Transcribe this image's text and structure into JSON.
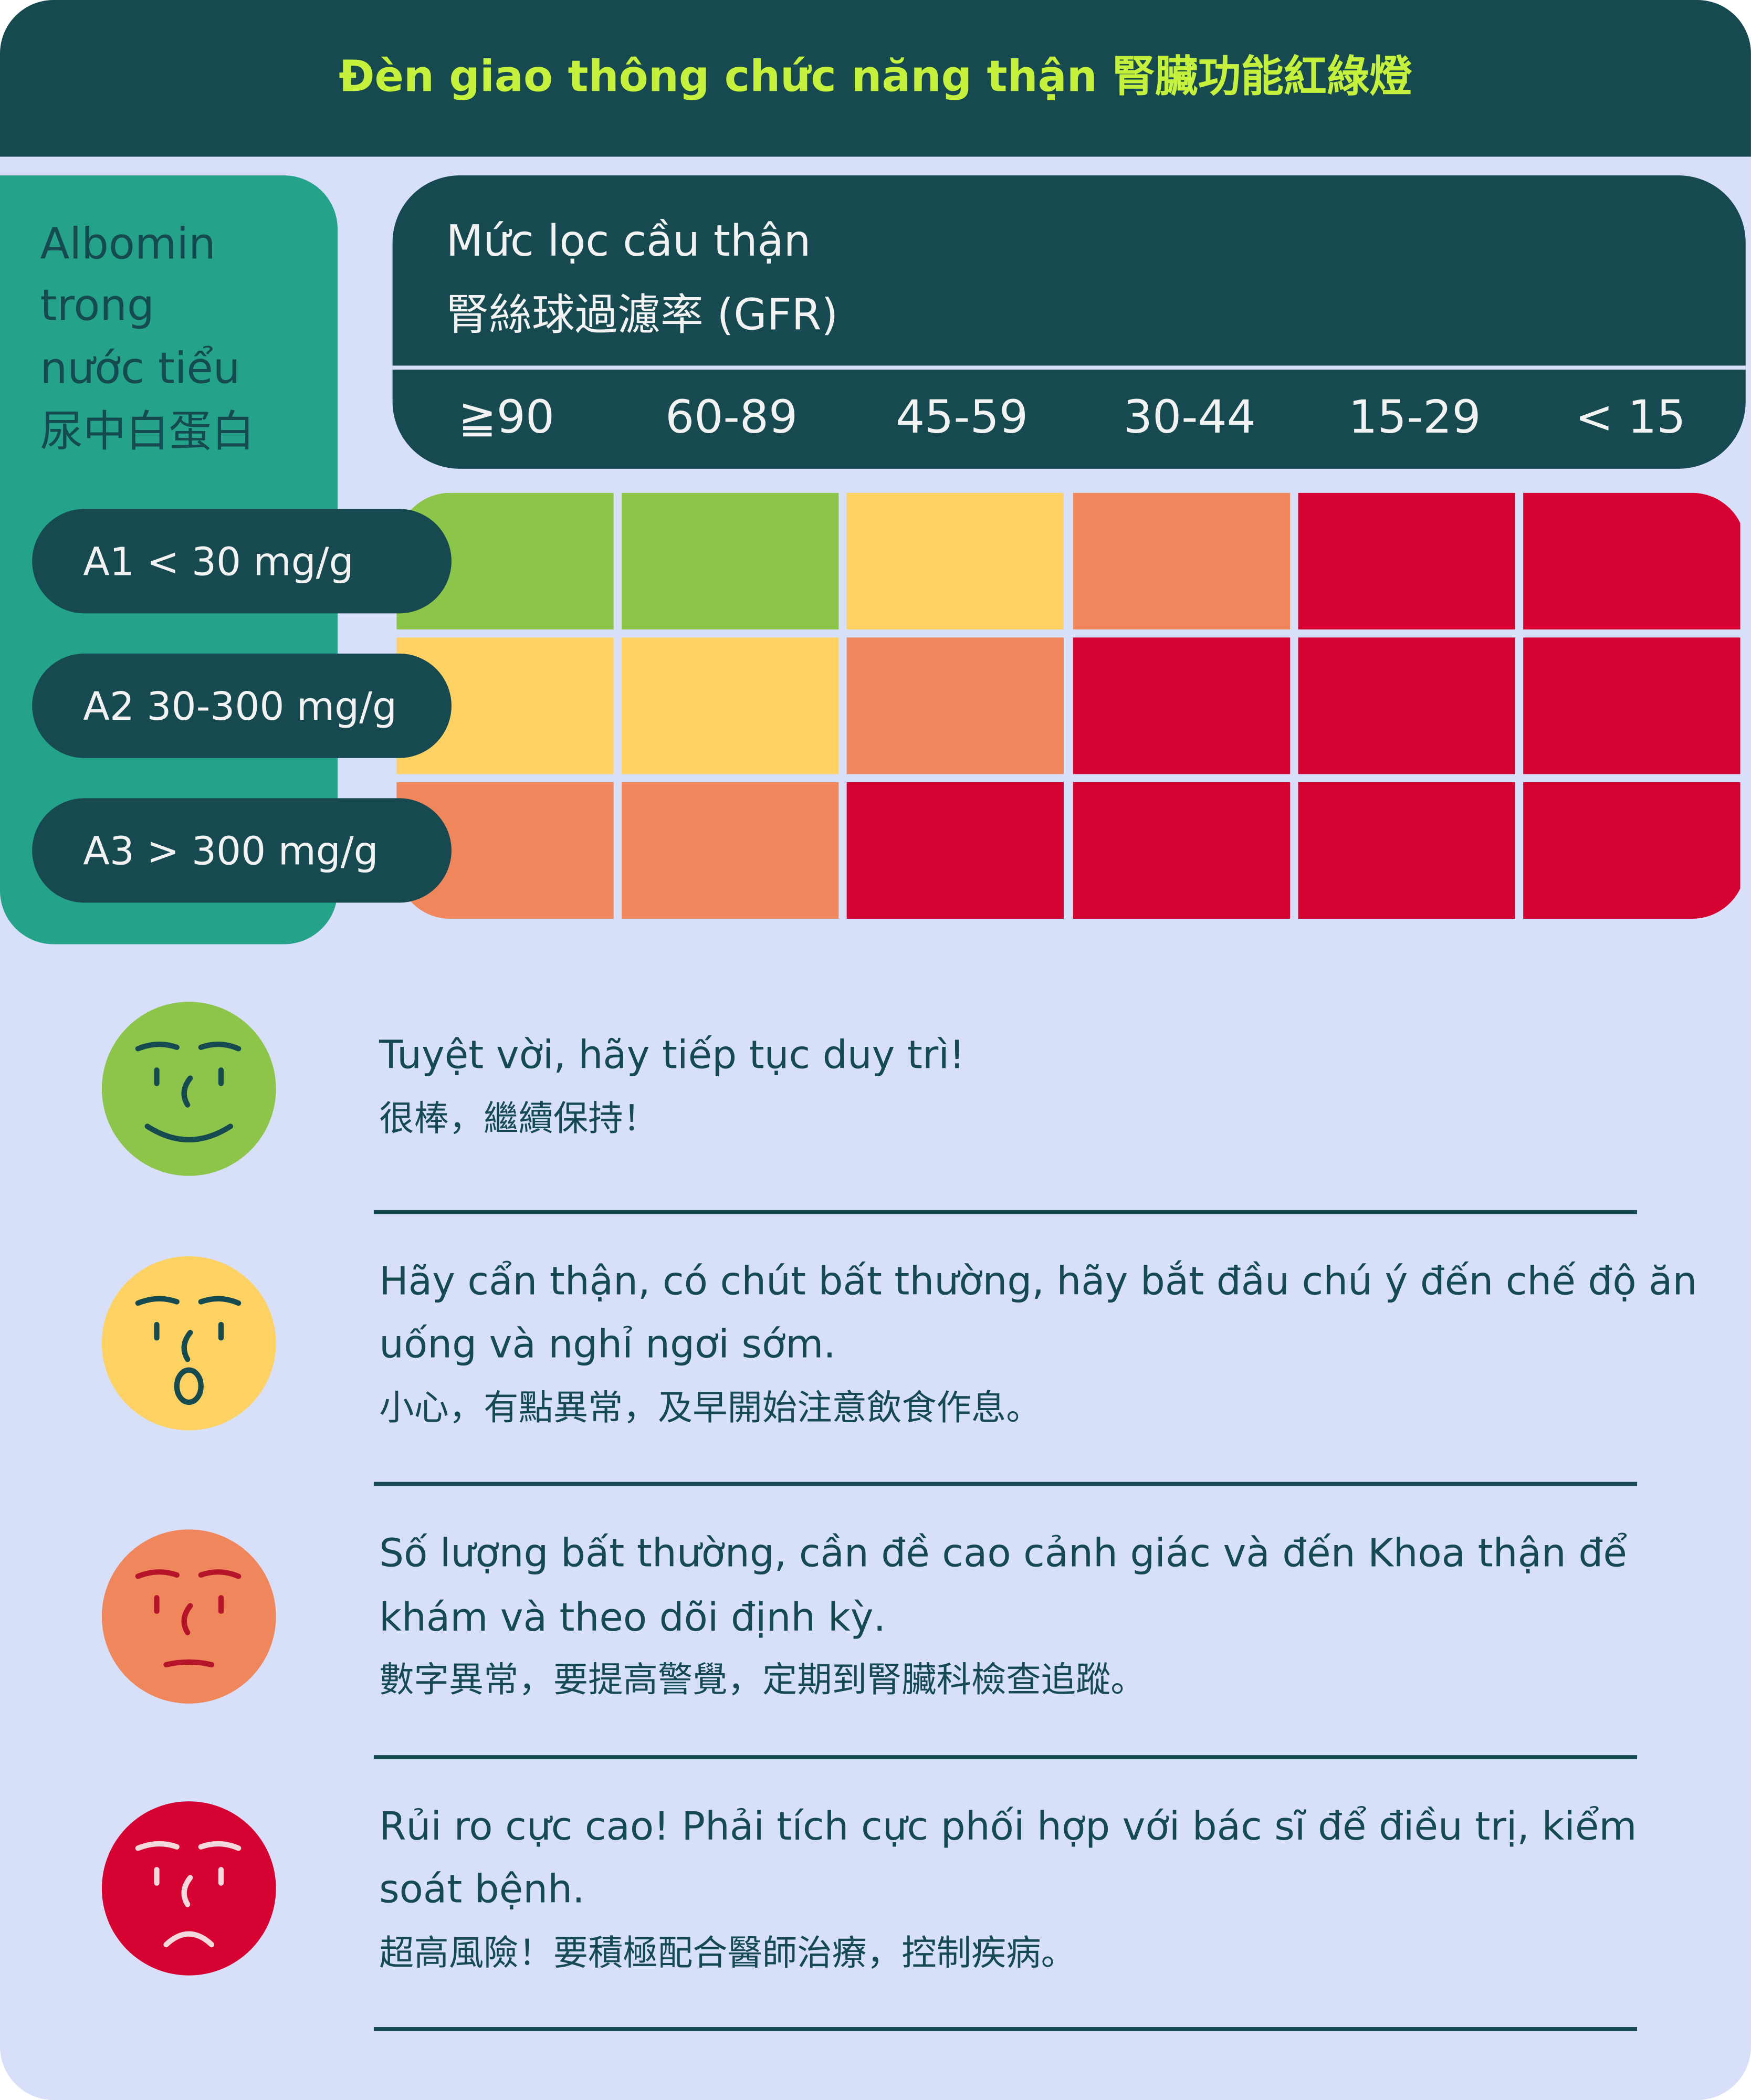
{
  "title": "Đèn giao thông chức năng thận 腎臟功能紅綠燈",
  "albumin_header": [
    "Albomin",
    "trong",
    "nước tiểu",
    "尿中白蛋白"
  ],
  "gfr_header": [
    "Mức lọc cầu thận",
    "腎絲球過濾率 (GFR)"
  ],
  "gfr_categories": [
    "≧90",
    "60-89",
    "45-59",
    "30-44",
    "15-29",
    "< 15"
  ],
  "albumin_rows": [
    "A1 < 30 mg/g",
    "A2 30-300 mg/g",
    "A3 > 300 mg/g"
  ],
  "cells": [
    [
      "#8dc54b",
      "#8dc54b",
      "#fdd262",
      "#ef865c",
      "#d60232",
      "#d60232"
    ],
    [
      "#fdd262",
      "#fdd262",
      "#ef865c",
      "#d60232",
      "#d60232",
      "#d60232"
    ],
    [
      "#ef865c",
      "#ef865c",
      "#d60232",
      "#d60232",
      "#d60232",
      "#d60232"
    ]
  ],
  "legend": [
    {
      "color": "#8dc54b",
      "vi": [
        "Tuyệt vời, hãy tiếp tục duy trì!"
      ],
      "zh": "很棒，繼續保持！"
    },
    {
      "color": "#fdd262",
      "vi": [
        "Hãy cẩn thận, có chút bất thường, hãy bắt đầu chú ý đến chế độ ăn",
        "uống và nghỉ ngơi sớm."
      ],
      "zh": "小心，有點異常，及早開始注意飲食作息。"
    },
    {
      "color": "#ef865c",
      "vi": [
        "Số lượng bất thường, cần đề cao cảnh giác và đến Khoa thận để",
        "khám và theo dõi định kỳ."
      ],
      "zh": "數字異常，要提高警覺，定期到腎臟科檢查追蹤。"
    },
    {
      "color": "#d60232",
      "vi": [
        "Rủi ro cực cao! Phải tích cực phối hợp với bác sĩ để điều trị,  kiểm",
        "soát bệnh."
      ],
      "zh": "超高風險！要積極配合醫師治療，控制疾病。"
    }
  ]
}
